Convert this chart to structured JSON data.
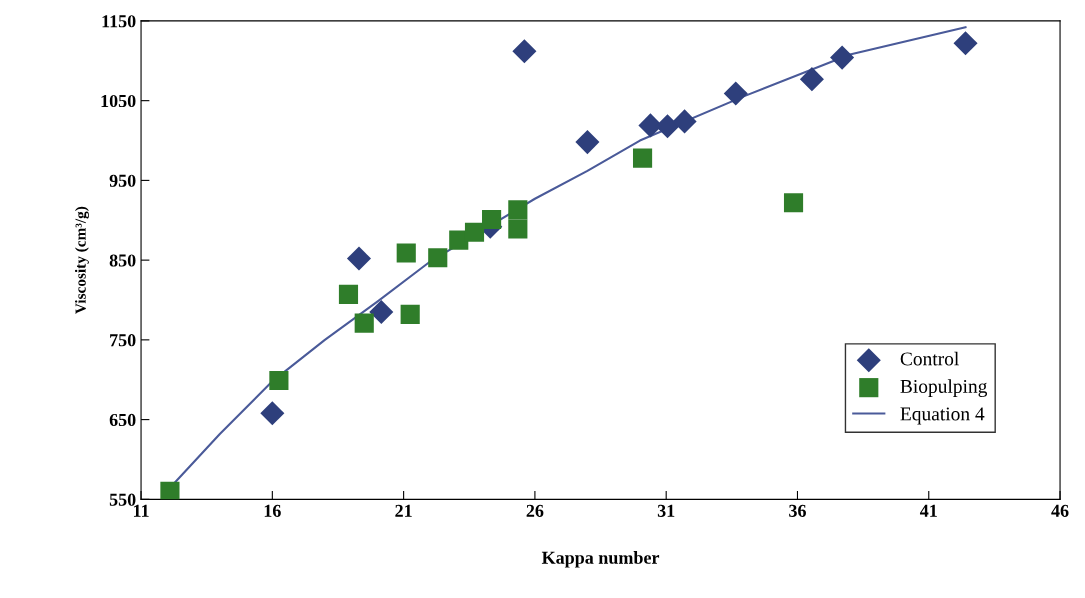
{
  "chart_data": {
    "type": "scatter",
    "xlabel": "Kappa number",
    "ylabel": "Viscosity (cm³/g)",
    "xlim": [
      11,
      46
    ],
    "xticks": [
      11,
      16,
      21,
      26,
      31,
      36,
      41,
      46
    ],
    "ylim": [
      550,
      1150
    ],
    "yticks": [
      550,
      650,
      750,
      850,
      950,
      1050,
      1150
    ],
    "grid": false,
    "legend": "bottom right",
    "series": [
      {
        "name": "Control",
        "marker": "diamond",
        "color": "#2e3f7c",
        "x": [
          16.0,
          19.3,
          20.15,
          24.3,
          25.6,
          28.0,
          30.4,
          31.05,
          31.7,
          33.65,
          36.55,
          37.7,
          42.4
        ],
        "values": [
          658,
          852,
          785,
          892,
          1112,
          998,
          1019,
          1018,
          1024,
          1059,
          1077,
          1104,
          1122
        ]
      },
      {
        "name": "Biopulping",
        "marker": "square",
        "color": "#2f7d2a",
        "x": [
          12.1,
          16.25,
          18.9,
          19.5,
          21.1,
          21.25,
          22.3,
          23.1,
          23.7,
          24.35,
          25.35,
          25.35,
          30.1,
          35.85
        ],
        "values": [
          560,
          699,
          807,
          771,
          859,
          782,
          853,
          875,
          885,
          901,
          913,
          889,
          978,
          922
        ]
      },
      {
        "name": "Equation 4",
        "type": "line",
        "marker": "none",
        "line_style": "solid",
        "color": "#4a5a99",
        "x": [
          12.2,
          14,
          16,
          18,
          20,
          22,
          26,
          28,
          30,
          34,
          38,
          42.4
        ],
        "values": [
          568,
          632,
          698,
          750,
          798,
          848,
          927,
          962,
          1000,
          1056,
          1108,
          1142
        ]
      }
    ]
  }
}
